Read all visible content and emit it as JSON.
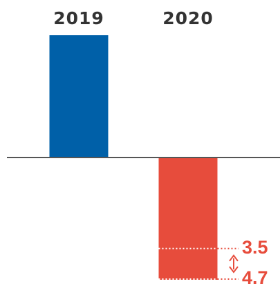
{
  "chart_data": {
    "type": "bar",
    "categories": [
      "2019",
      "2020"
    ],
    "values": [
      4.7,
      -4.7
    ],
    "colors": [
      "#0060a8",
      "#e74c3c"
    ],
    "ylim": [
      -4.7,
      4.7
    ],
    "annotations": [
      {
        "label": "3.5",
        "value": 3.5
      },
      {
        "label": "4.7",
        "value": 4.7
      }
    ],
    "annotation_color": "#e74c3c"
  }
}
